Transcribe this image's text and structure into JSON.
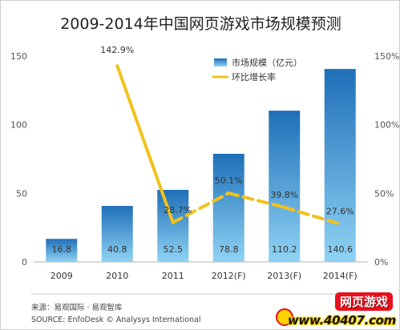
{
  "chart_data": {
    "type": "bar",
    "title": "2009-2014年中国网页游戏市场规模预测",
    "categories": [
      "2009",
      "2010",
      "2011",
      "2012(F)",
      "2013(F)",
      "2014(F)"
    ],
    "series": [
      {
        "name": "市场规模（亿元）",
        "type": "bar",
        "axis": "left",
        "values": [
          16.8,
          40.8,
          52.5,
          78.8,
          110.2,
          140.6
        ],
        "labels": [
          "16.8",
          "40.8",
          "52.5",
          "78.8",
          "110.2",
          "140.6"
        ]
      },
      {
        "name": "环比增长率",
        "type": "line",
        "axis": "right",
        "values": [
          null,
          142.9,
          28.7,
          50.1,
          39.8,
          27.6
        ],
        "labels": [
          "",
          "142.9%",
          "28.7%",
          "50.1%",
          "39.8%",
          "27.6%"
        ]
      }
    ],
    "ylim": [
      0,
      150
    ],
    "y_ticks": [
      "0",
      "50",
      "100",
      "150"
    ],
    "y2lim": [
      0,
      150
    ],
    "y2_ticks": [
      "0%",
      "50%",
      "100%",
      "150%"
    ],
    "legend": "top-right",
    "grid": false,
    "colors": {
      "bar_top": "#1f6fb8",
      "bar_bottom": "#8fd3f4",
      "line": "#f2c21b"
    }
  },
  "source_lines": [
    "来源：易观国际 · 易观智库",
    "SOURCE: EnfoDesk © Analysys International"
  ],
  "watermark": {
    "top": "网页游戏",
    "bottom": "www.40407.com"
  }
}
